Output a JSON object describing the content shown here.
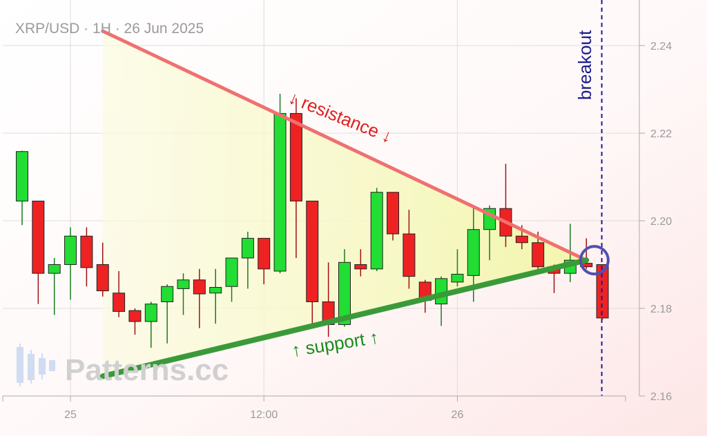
{
  "chart_data": {
    "type": "candlestick",
    "title": "XRP/USD · 1H · 26 Jun 2025",
    "ylim": [
      2.16,
      2.25
    ],
    "y_ticks": [
      "2.24",
      "2.22",
      "2.20",
      "2.18",
      "2.16"
    ],
    "x_tick_labels": [
      "25",
      "12:00",
      "26"
    ],
    "x_tick_index": [
      3,
      15,
      27
    ],
    "grid": true,
    "candles": [
      {
        "o": 2.2045,
        "h": 2.216,
        "l": 2.199,
        "c": 2.2158
      },
      {
        "o": 2.2045,
        "h": 2.2045,
        "l": 2.181,
        "c": 2.188
      },
      {
        "o": 2.188,
        "h": 2.1915,
        "l": 2.1785,
        "c": 2.19
      },
      {
        "o": 2.19,
        "h": 2.1985,
        "l": 2.182,
        "c": 2.1965
      },
      {
        "o": 2.1965,
        "h": 2.1985,
        "l": 2.185,
        "c": 2.1893
      },
      {
        "o": 2.19,
        "h": 2.195,
        "l": 2.1827,
        "c": 2.184
      },
      {
        "o": 2.1835,
        "h": 2.1885,
        "l": 2.178,
        "c": 2.1793
      },
      {
        "o": 2.1795,
        "h": 2.18,
        "l": 2.174,
        "c": 2.177
      },
      {
        "o": 2.177,
        "h": 2.1815,
        "l": 2.171,
        "c": 2.181
      },
      {
        "o": 2.1815,
        "h": 2.1855,
        "l": 2.172,
        "c": 2.185
      },
      {
        "o": 2.1845,
        "h": 2.188,
        "l": 2.1785,
        "c": 2.1865
      },
      {
        "o": 2.1865,
        "h": 2.189,
        "l": 2.1755,
        "c": 2.1833
      },
      {
        "o": 2.1835,
        "h": 2.189,
        "l": 2.1765,
        "c": 2.1848
      },
      {
        "o": 2.185,
        "h": 2.1915,
        "l": 2.1815,
        "c": 2.1915
      },
      {
        "o": 2.1915,
        "h": 2.1975,
        "l": 2.1845,
        "c": 2.196
      },
      {
        "o": 2.196,
        "h": 2.196,
        "l": 2.1855,
        "c": 2.189
      },
      {
        "o": 2.1885,
        "h": 2.229,
        "l": 2.188,
        "c": 2.2245
      },
      {
        "o": 2.2245,
        "h": 2.228,
        "l": 2.1915,
        "c": 2.2045
      },
      {
        "o": 2.2045,
        "h": 2.2045,
        "l": 2.1755,
        "c": 2.1815
      },
      {
        "o": 2.1815,
        "h": 2.1905,
        "l": 2.1735,
        "c": 2.1763
      },
      {
        "o": 2.1763,
        "h": 2.1935,
        "l": 2.1758,
        "c": 2.1905
      },
      {
        "o": 2.19,
        "h": 2.1935,
        "l": 2.1873,
        "c": 2.189
      },
      {
        "o": 2.189,
        "h": 2.2075,
        "l": 2.1885,
        "c": 2.2065
      },
      {
        "o": 2.2065,
        "h": 2.2065,
        "l": 2.1955,
        "c": 2.197
      },
      {
        "o": 2.197,
        "h": 2.2025,
        "l": 2.1845,
        "c": 2.1873
      },
      {
        "o": 2.186,
        "h": 2.1865,
        "l": 2.179,
        "c": 2.1818
      },
      {
        "o": 2.181,
        "h": 2.1873,
        "l": 2.176,
        "c": 2.1868
      },
      {
        "o": 2.186,
        "h": 2.1935,
        "l": 2.185,
        "c": 2.1878
      },
      {
        "o": 2.1875,
        "h": 2.2035,
        "l": 2.1815,
        "c": 2.198
      },
      {
        "o": 2.198,
        "h": 2.2035,
        "l": 2.191,
        "c": 2.2028
      },
      {
        "o": 2.2028,
        "h": 2.213,
        "l": 2.194,
        "c": 2.1965
      },
      {
        "o": 2.1965,
        "h": 2.199,
        "l": 2.1935,
        "c": 2.195
      },
      {
        "o": 2.195,
        "h": 2.1975,
        "l": 2.189,
        "c": 2.1895
      },
      {
        "o": 2.1895,
        "h": 2.19,
        "l": 2.1835,
        "c": 2.188
      },
      {
        "o": 2.188,
        "h": 2.1993,
        "l": 2.186,
        "c": 2.191
      },
      {
        "o": 2.1903,
        "h": 2.196,
        "l": 2.189,
        "c": 2.1895
      },
      {
        "o": 2.19,
        "h": 2.19,
        "l": 2.1775,
        "c": 2.1778
      }
    ],
    "resistance_line": {
      "from": {
        "i": 5,
        "y": 2.2433
      },
      "to": {
        "i": 35,
        "y": 2.191
      }
    },
    "support_line": {
      "from": {
        "i": 5,
        "y": 2.1645
      },
      "to": {
        "i": 35,
        "y": 2.191
      }
    },
    "breakout_index": 36,
    "annotations": {
      "resistance": "↓ resistance ↓",
      "support": "↑ support ↑",
      "breakout": "breakout"
    },
    "colors": {
      "bull": "#22dd33",
      "bear": "#ee2222",
      "resistance": "#f07070",
      "support": "#3a9a3a",
      "breakout": "#1a1a9a",
      "triangle_fill": "#f4f7b0"
    }
  },
  "watermark": "Patterns.cc"
}
